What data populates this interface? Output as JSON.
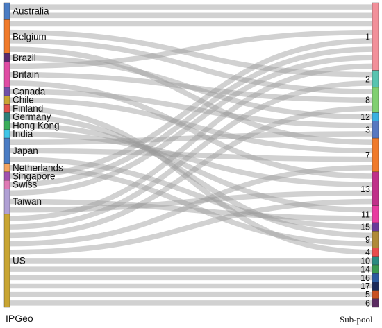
{
  "chart_data": {
    "type": "sankey",
    "left_axis_label": "IPGeo",
    "right_axis_label": "Sub-pool",
    "left_nodes": [
      {
        "name": "Australia",
        "color": "#4a7cc4"
      },
      {
        "name": "Belgium",
        "color": "#f07a2a"
      },
      {
        "name": "Brazil",
        "color": "#5c2a6e"
      },
      {
        "name": "Britain",
        "color": "#e04ca4"
      },
      {
        "name": "Canada",
        "color": "#7050a8"
      },
      {
        "name": "Chile",
        "color": "#c9a532"
      },
      {
        "name": "Finland",
        "color": "#e0504c"
      },
      {
        "name": "Germany",
        "color": "#2e7f78"
      },
      {
        "name": "Hong Kong",
        "color": "#3aae5a"
      },
      {
        "name": "India",
        "color": "#3ec6e8"
      },
      {
        "name": "Japan",
        "color": "#4a7cc4"
      },
      {
        "name": "Netherlands",
        "color": "#f4a460"
      },
      {
        "name": "Singapore",
        "color": "#a050b0"
      },
      {
        "name": "Swiss",
        "color": "#e07ab4"
      },
      {
        "name": "Taiwan",
        "color": "#b0a0d4"
      },
      {
        "name": "US",
        "color": "#c9a532"
      }
    ],
    "right_nodes": [
      {
        "name": "1",
        "color": "#f2909a"
      },
      {
        "name": "2",
        "color": "#58c4b0"
      },
      {
        "name": "8",
        "color": "#80d070"
      },
      {
        "name": "12",
        "color": "#3ab0e0"
      },
      {
        "name": "3",
        "color": "#5878c0"
      },
      {
        "name": "7",
        "color": "#f07a2a"
      },
      {
        "name": "13",
        "color": "#c0308a"
      },
      {
        "name": "11",
        "color": "#e83ca0"
      },
      {
        "name": "15",
        "color": "#6a3a9a"
      },
      {
        "name": "9",
        "color": "#b08a38"
      },
      {
        "name": "4",
        "color": "#e84c4c"
      },
      {
        "name": "10",
        "color": "#2a8a80"
      },
      {
        "name": "14",
        "color": "#3a9a50"
      },
      {
        "name": "16",
        "color": "#2a5aa0"
      },
      {
        "name": "17",
        "color": "#1a2a5a"
      },
      {
        "name": "5",
        "color": "#c85020"
      },
      {
        "name": "6",
        "color": "#5a2a60"
      }
    ],
    "links": [
      {
        "source": "Australia",
        "target": "1",
        "value": 1
      },
      {
        "source": "Australia",
        "target": "1",
        "value": 1
      },
      {
        "source": "Belgium",
        "target": "1",
        "value": 1
      },
      {
        "source": "Belgium",
        "target": "2",
        "value": 1
      },
      {
        "source": "Belgium",
        "target": "8",
        "value": 1
      },
      {
        "source": "Belgium",
        "target": "7",
        "value": 1
      },
      {
        "source": "Brazil",
        "target": "12",
        "value": 1
      },
      {
        "source": "Britain",
        "target": "1",
        "value": 1
      },
      {
        "source": "Britain",
        "target": "8",
        "value": 1
      },
      {
        "source": "Britain",
        "target": "13",
        "value": 1
      },
      {
        "source": "Canada",
        "target": "3",
        "value": 1
      },
      {
        "source": "Chile",
        "target": "7",
        "value": 1
      },
      {
        "source": "Finland",
        "target": "4",
        "value": 1
      },
      {
        "source": "Germany",
        "target": "9",
        "value": 1
      },
      {
        "source": "Hong Kong",
        "target": "11",
        "value": 1
      },
      {
        "source": "India",
        "target": "13",
        "value": 1
      },
      {
        "source": "Japan",
        "target": "3",
        "value": 1
      },
      {
        "source": "Japan",
        "target": "7",
        "value": 1
      },
      {
        "source": "Japan",
        "target": "15",
        "value": 1
      },
      {
        "source": "Netherlands",
        "target": "9",
        "value": 1
      },
      {
        "source": "Singapore",
        "target": "1",
        "value": 1
      },
      {
        "source": "Swiss",
        "target": "1",
        "value": 1
      },
      {
        "source": "Taiwan",
        "target": "1",
        "value": 1
      },
      {
        "source": "Taiwan",
        "target": "11",
        "value": 1
      },
      {
        "source": "Taiwan",
        "target": "13",
        "value": 1
      },
      {
        "source": "US",
        "target": "1",
        "value": 1
      },
      {
        "source": "US",
        "target": "2",
        "value": 1
      },
      {
        "source": "US",
        "target": "8",
        "value": 1
      },
      {
        "source": "US",
        "target": "7",
        "value": 1
      },
      {
        "source": "US",
        "target": "13",
        "value": 1
      },
      {
        "source": "US",
        "target": "10",
        "value": 1
      },
      {
        "source": "US",
        "target": "14",
        "value": 1
      },
      {
        "source": "US",
        "target": "16",
        "value": 1
      },
      {
        "source": "US",
        "target": "17",
        "value": 1
      },
      {
        "source": "US",
        "target": "5",
        "value": 1
      },
      {
        "source": "US",
        "target": "6",
        "value": 1
      }
    ]
  }
}
